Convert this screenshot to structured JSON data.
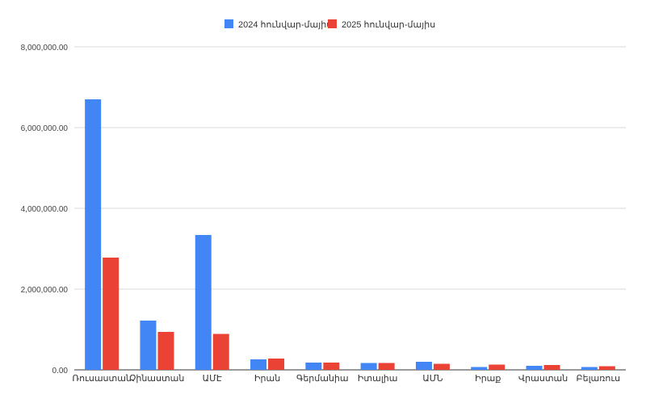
{
  "chart_data": {
    "type": "bar",
    "title": "",
    "xlabel": "",
    "ylabel": "",
    "categories": [
      "Ռուսաստան",
      "Չինաստան",
      "ԱՄԷ",
      "Իրան",
      "Գերմանիա",
      "Իտալիա",
      "ԱՄՆ",
      "Իրաք",
      "Վրաստան",
      "Բելառուս"
    ],
    "series": [
      {
        "name": "2024 հունվար-մայիս",
        "color": "#4285F4",
        "values": [
          6700000,
          1220000,
          3340000,
          260000,
          180000,
          170000,
          200000,
          70000,
          100000,
          70000
        ]
      },
      {
        "name": "2025 հունվար-մայիս",
        "color": "#EA4335",
        "values": [
          2780000,
          940000,
          890000,
          280000,
          180000,
          170000,
          150000,
          130000,
          120000,
          90000
        ]
      }
    ],
    "ylim": [
      0,
      8000000
    ],
    "yticks": [
      0,
      2000000,
      4000000,
      6000000,
      8000000
    ],
    "ytick_labels": [
      "0.00",
      "2,000,000.00",
      "4,000,000.00",
      "6,000,000.00",
      "8,000,000.00"
    ],
    "grid": true,
    "legend_position": "top-center"
  }
}
